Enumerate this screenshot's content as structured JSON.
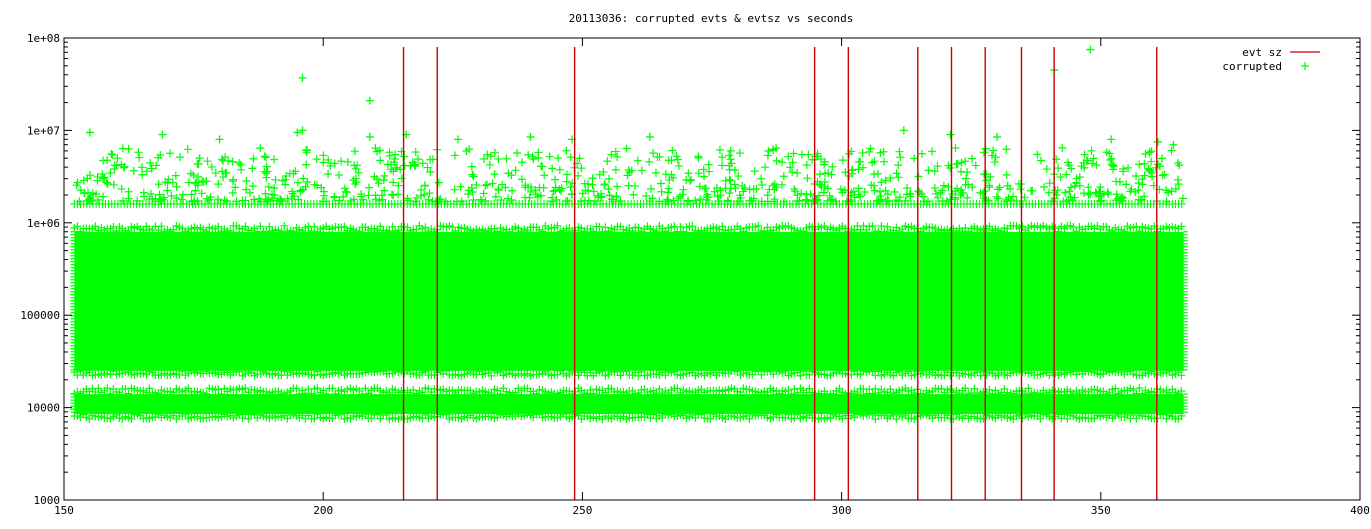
{
  "chart_data": {
    "type": "scatter",
    "title": "20113036:  corrupted evts & evtsz vs seconds",
    "xlabel": "",
    "ylabel": "",
    "xlim": [
      150,
      400
    ],
    "ylim": [
      1000,
      100000000
    ],
    "y_scale": "log",
    "grid": false,
    "legend_placement": "top-right",
    "x_ticks": [
      {
        "value": 150,
        "label": "150"
      },
      {
        "value": 200,
        "label": "200"
      },
      {
        "value": 250,
        "label": "250"
      },
      {
        "value": 300,
        "label": "300"
      },
      {
        "value": 350,
        "label": "350"
      },
      {
        "value": 400,
        "label": "400"
      }
    ],
    "y_ticks": [
      {
        "value": 1000,
        "label": "1000"
      },
      {
        "value": 10000,
        "label": "10000"
      },
      {
        "value": 100000,
        "label": "100000"
      },
      {
        "value": 1000000,
        "label": "1e+06"
      },
      {
        "value": 10000000,
        "label": "1e+07"
      },
      {
        "value": 100000000,
        "label": "1e+08"
      }
    ],
    "series": [
      {
        "name": "evt sz",
        "style": "impulses",
        "color": "#cc0000",
        "x": [
          215.5,
          222.0,
          248.5,
          294.8,
          301.3,
          314.7,
          321.2,
          327.7,
          334.7,
          341.0,
          360.8
        ],
        "y": [
          80000000,
          80000000,
          80000000,
          80000000,
          80000000,
          80000000,
          80000000,
          80000000,
          80000000,
          80000000,
          80000000
        ]
      },
      {
        "name": "corrupted",
        "style": "points",
        "marker": "+",
        "color": "#00ff00",
        "x": [
          196,
          209,
          341,
          348,
          155,
          169,
          180,
          195,
          196,
          209,
          216,
          226,
          240,
          248,
          263,
          312,
          321,
          330,
          352,
          361,
          364
        ],
        "y": [
          37000000,
          21000000,
          45000000,
          75000000,
          9500000,
          9000000,
          8000000,
          9500000,
          10000000,
          8500000,
          9000000,
          8000000,
          8500000,
          8000000,
          8500000,
          10000000,
          9000000,
          8500000,
          8000000,
          7500000,
          7000000
        ],
        "dense_bands": [
          {
            "x": [
              152,
              366
            ],
            "y": [
              25000000,
              10000000
            ]
          },
          {
            "x": [
              152,
              366
            ],
            "y": [
              25000,
              800000
            ]
          },
          {
            "x": [
              152,
              366
            ],
            "y": [
              8500,
              14000
            ]
          }
        ],
        "baseline_line": {
          "x": [
            152,
            366
          ],
          "y": 1600000
        }
      }
    ]
  }
}
